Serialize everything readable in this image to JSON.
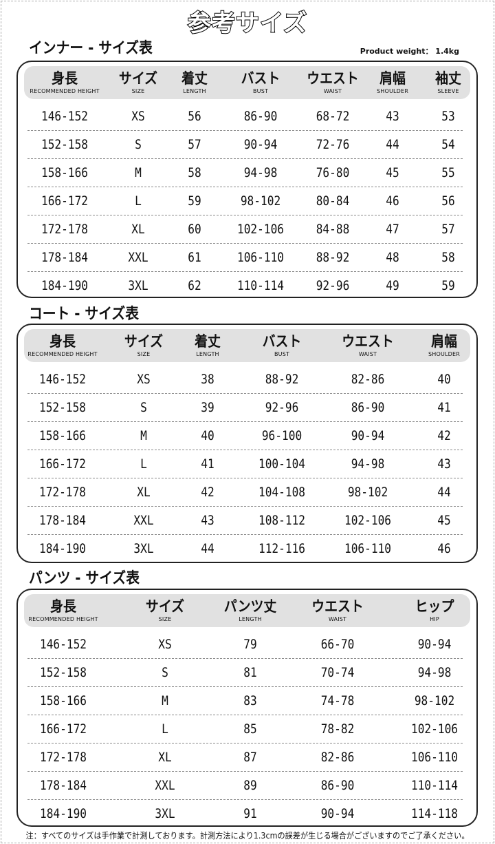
{
  "title": "参考サイズ",
  "product_weight": "Product weight： 1.4kg",
  "tables": [
    {
      "title": "インナー - サイズ表",
      "headers": [
        [
          "身長",
          "RECOMMENDED HEIGHT"
        ],
        [
          "サイズ",
          "SIZE"
        ],
        [
          "着丈",
          "LENGTH"
        ],
        [
          "バスト",
          "BUST"
        ],
        [
          "ウエスト",
          "WAIST"
        ],
        [
          "肩幅",
          "SHOULDER"
        ],
        [
          "袖丈",
          "SLEEVE"
        ]
      ],
      "rows": [
        [
          "146-152",
          "XS",
          "56",
          "86-90",
          "68-72",
          "43",
          "53"
        ],
        [
          "152-158",
          "S",
          "57",
          "90-94",
          "72-76",
          "44",
          "54"
        ],
        [
          "158-166",
          "M",
          "58",
          "94-98",
          "76-80",
          "45",
          "55"
        ],
        [
          "166-172",
          "L",
          "59",
          "98-102",
          "80-84",
          "46",
          "56"
        ],
        [
          "172-178",
          "XL",
          "60",
          "102-106",
          "84-88",
          "47",
          "57"
        ],
        [
          "178-184",
          "XXL",
          "61",
          "106-110",
          "88-92",
          "48",
          "58"
        ],
        [
          "184-190",
          "3XL",
          "62",
          "110-114",
          "92-96",
          "49",
          "59"
        ]
      ]
    },
    {
      "title": "コート - サイズ表",
      "headers": [
        [
          "身長",
          "RECOMMENDED HEIGHT"
        ],
        [
          "サイズ",
          "SIZE"
        ],
        [
          "着丈",
          "LENGTH"
        ],
        [
          "バスト",
          "BUST"
        ],
        [
          "ウエスト",
          "WAIST"
        ],
        [
          "肩幅",
          "SHOULDER"
        ]
      ],
      "rows": [
        [
          "146-152",
          "XS",
          "38",
          "88-92",
          "82-86",
          "40"
        ],
        [
          "152-158",
          "S",
          "39",
          "92-96",
          "86-90",
          "41"
        ],
        [
          "158-166",
          "M",
          "40",
          "96-100",
          "90-94",
          "42"
        ],
        [
          "166-172",
          "L",
          "41",
          "100-104",
          "94-98",
          "43"
        ],
        [
          "172-178",
          "XL",
          "42",
          "104-108",
          "98-102",
          "44"
        ],
        [
          "178-184",
          "XXL",
          "43",
          "108-112",
          "102-106",
          "45"
        ],
        [
          "184-190",
          "3XL",
          "44",
          "112-116",
          "106-110",
          "46"
        ]
      ]
    },
    {
      "title": "パンツ - サイズ表",
      "headers": [
        [
          "身長",
          "RECOMMENDED HEIGHT"
        ],
        [
          "サイズ",
          "SIZE"
        ],
        [
          "パンツ丈",
          "LENGTH"
        ],
        [
          "ウエスト",
          "WAIST"
        ],
        [
          "ヒップ",
          "HIP"
        ]
      ],
      "rows": [
        [
          "146-152",
          "XS",
          "79",
          "66-70",
          "90-94"
        ],
        [
          "152-158",
          "S",
          "81",
          "70-74",
          "94-98"
        ],
        [
          "158-166",
          "M",
          "83",
          "74-78",
          "98-102"
        ],
        [
          "166-172",
          "L",
          "85",
          "78-82",
          "102-106"
        ],
        [
          "172-178",
          "XL",
          "87",
          "82-86",
          "106-110"
        ],
        [
          "178-184",
          "XXL",
          "89",
          "86-90",
          "110-114"
        ],
        [
          "184-190",
          "3XL",
          "91",
          "90-94",
          "114-118"
        ]
      ]
    }
  ],
  "footnote": "注：すべてのサイズは手作業で計測しております。計測方法により1.3cmの誤差が生じる場合がございますのでご了承ください。"
}
